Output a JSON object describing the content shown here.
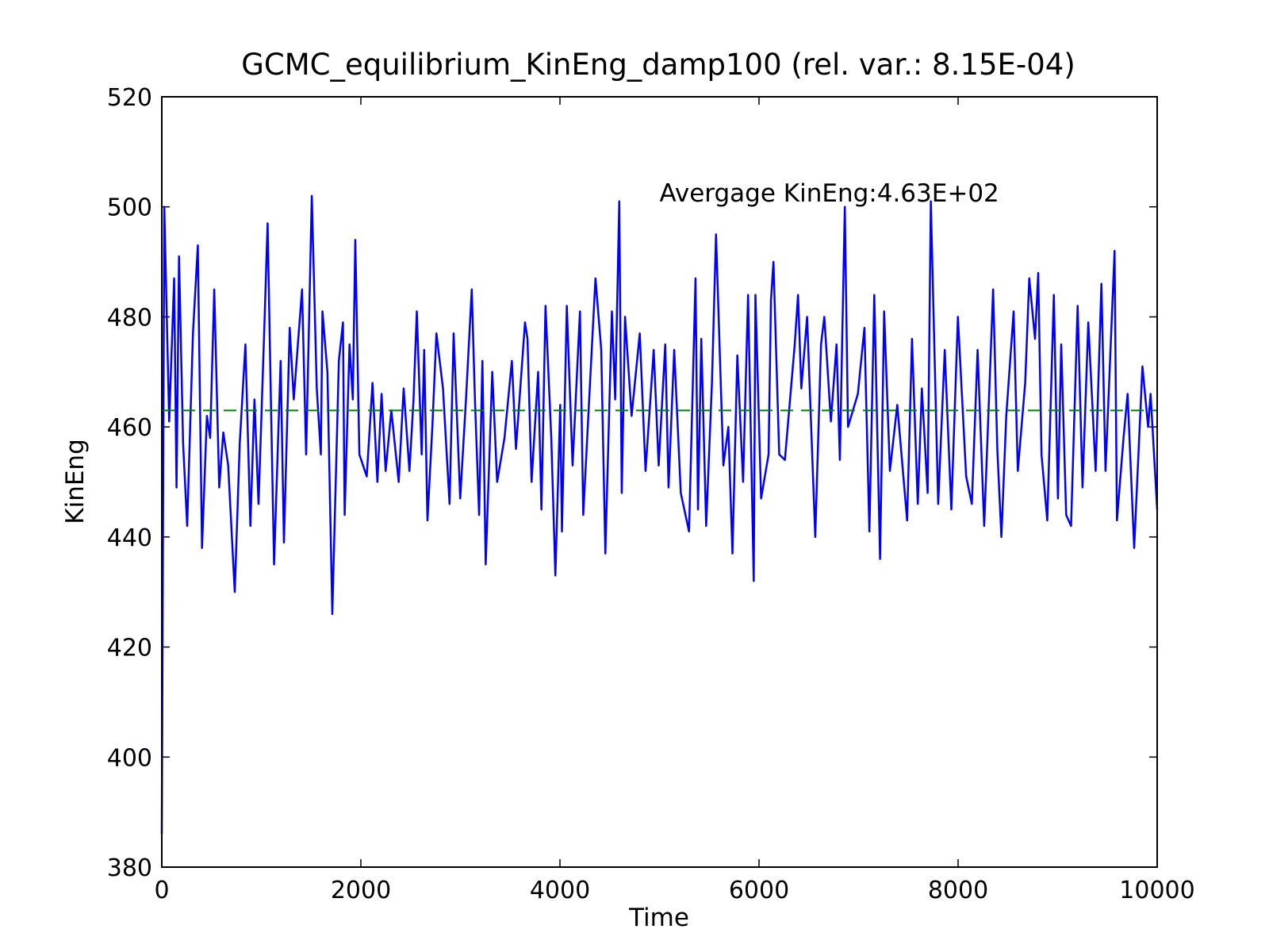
{
  "chart_data": {
    "type": "line",
    "title": "GCMC_equilibrium_KinEng_damp100 (rel. var.: 8.15E-04)",
    "x_label": "Time",
    "y_label": "KinEng",
    "annotation": {
      "text": "Avergage KinEng:4.63E+02",
      "x": 5000,
      "y": 501,
      "color": "#008000"
    },
    "average_line": {
      "value": 463,
      "color": "#008000",
      "dashed": true
    },
    "xlim": [
      0,
      10000
    ],
    "xticks": [
      0,
      2000,
      4000,
      6000,
      8000,
      10000
    ],
    "ylim": [
      380,
      520
    ],
    "yticks": [
      380,
      400,
      420,
      440,
      460,
      480,
      500,
      520
    ],
    "x": [
      0,
      25,
      74,
      124,
      148,
      173,
      214,
      255,
      313,
      362,
      404,
      453,
      486,
      527,
      577,
      618,
      667,
      733,
      783,
      840,
      890,
      931,
      972,
      1030,
      1063,
      1096,
      1128,
      1194,
      1227,
      1285,
      1326,
      1367,
      1409,
      1450,
      1507,
      1557,
      1598,
      1614,
      1664,
      1713,
      1779,
      1820,
      1837,
      1886,
      1919,
      1944,
      1985,
      2059,
      2117,
      2166,
      2208,
      2249,
      2306,
      2380,
      2430,
      2488,
      2529,
      2562,
      2611,
      2636,
      2669,
      2718,
      2759,
      2825,
      2891,
      2932,
      2998,
      3056,
      3114,
      3146,
      3188,
      3221,
      3254,
      3320,
      3369,
      3443,
      3517,
      3558,
      3649,
      3674,
      3715,
      3781,
      3814,
      3855,
      3913,
      3954,
      4003,
      4020,
      4069,
      4127,
      4201,
      4234,
      4308,
      4357,
      4415,
      4456,
      4522,
      4555,
      4596,
      4621,
      4654,
      4720,
      4802,
      4860,
      4942,
      4992,
      5058,
      5091,
      5148,
      5214,
      5297,
      5362,
      5387,
      5420,
      5469,
      5527,
      5568,
      5642,
      5692,
      5733,
      5782,
      5840,
      5890,
      5947,
      5964,
      6021,
      6096,
      6120,
      6145,
      6203,
      6260,
      6359,
      6392,
      6425,
      6483,
      6565,
      6623,
      6656,
      6722,
      6779,
      6812,
      6862,
      6894,
      6993,
      7059,
      7109,
      7158,
      7216,
      7257,
      7315,
      7389,
      7488,
      7537,
      7595,
      7636,
      7694,
      7726,
      7800,
      7866,
      7932,
      7998,
      8081,
      8138,
      8196,
      8262,
      8352,
      8394,
      8435,
      8484,
      8558,
      8600,
      8674,
      8715,
      8773,
      8805,
      8838,
      8896,
      8962,
      9003,
      9036,
      9086,
      9135,
      9201,
      9250,
      9308,
      9382,
      9440,
      9481,
      9572,
      9596,
      9662,
      9703,
      9769,
      9852,
      9909,
      9934,
      10000
    ],
    "series": [
      {
        "name": "KinEng",
        "color": "#0000ff",
        "values": [
          386,
          500,
          461,
          487,
          449,
          491,
          457,
          442,
          477,
          493,
          438,
          462,
          458,
          485,
          449,
          459,
          453,
          430,
          457,
          475,
          442,
          465,
          446,
          478,
          497,
          465,
          435,
          472,
          439,
          478,
          465,
          475,
          485,
          455,
          502,
          467,
          455,
          481,
          470,
          426,
          472,
          479,
          444,
          475,
          465,
          494,
          455,
          451,
          468,
          450,
          466,
          452,
          463,
          450,
          467,
          452,
          465,
          481,
          455,
          474,
          443,
          460,
          477,
          467,
          446,
          477,
          447,
          465,
          485,
          465,
          444,
          472,
          435,
          470,
          450,
          458,
          472,
          456,
          479,
          476,
          450,
          470,
          445,
          482,
          458,
          433,
          464,
          441,
          482,
          453,
          481,
          444,
          470,
          487,
          474,
          437,
          481,
          465,
          501,
          448,
          480,
          462,
          477,
          452,
          474,
          453,
          475,
          449,
          474,
          448,
          441,
          487,
          445,
          476,
          442,
          468,
          495,
          453,
          460,
          437,
          473,
          450,
          484,
          432,
          484,
          447,
          455,
          483,
          490,
          455,
          454,
          475,
          484,
          467,
          480,
          440,
          475,
          480,
          461,
          475,
          454,
          500,
          460,
          466,
          478,
          441,
          484,
          436,
          481,
          452,
          464,
          443,
          476,
          446,
          467,
          448,
          501,
          446,
          474,
          445,
          480,
          451,
          446,
          474,
          442,
          485,
          456,
          440,
          462,
          481,
          452,
          468,
          487,
          476,
          488,
          455,
          443,
          484,
          447,
          475,
          444,
          442,
          482,
          449,
          479,
          452,
          486,
          452,
          492,
          443,
          458,
          466,
          438,
          471,
          460,
          466,
          445
        ]
      }
    ]
  }
}
